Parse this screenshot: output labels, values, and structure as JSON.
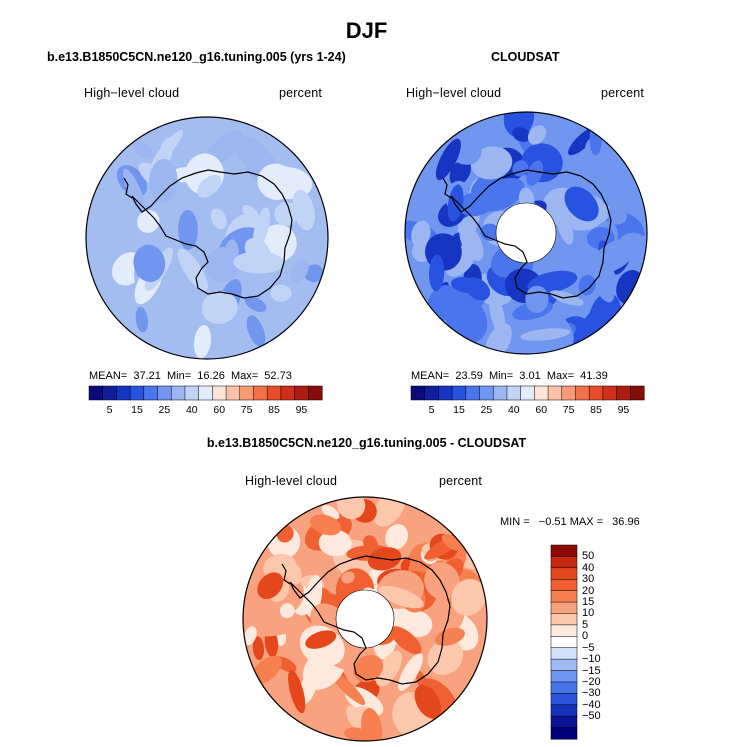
{
  "title": "DJF",
  "panels": [
    {
      "title": "b.e13.B1850C5CN.ne120_g16.tuning.005 (yrs 1-24)",
      "left_label": "High−level cloud",
      "right_label": "percent",
      "stats": {
        "mean_label": "MEAN=",
        "mean": "37.21",
        "min_label": "Min=",
        "min": "16.26",
        "max_label": "Max=",
        "max": "52.73"
      }
    },
    {
      "title": "CLOUDSAT",
      "left_label": "High−level cloud",
      "right_label": "percent",
      "stats": {
        "mean_label": "MEAN=",
        "mean": "23.59",
        "min_label": "Min=",
        "min": "3.01",
        "max_label": "Max=",
        "max": "41.39"
      }
    },
    {
      "title": "b.e13.B1850C5CN.ne120_g16.tuning.005 - CLOUDSAT",
      "left_label": "High-level cloud",
      "right_label": "percent",
      "minmax": "MIN =   −0.51 MAX =   36.96"
    }
  ],
  "colorbar_abs": {
    "colors": [
      "#0a0a7a",
      "#0f1f9c",
      "#1535c2",
      "#2852e0",
      "#4a75ec",
      "#7196f0",
      "#9cb6f2",
      "#c2d4f6",
      "#e3ecfb",
      "#fde3d8",
      "#fbc2a9",
      "#f99a76",
      "#f4704a",
      "#e84a2a",
      "#cf2f1b",
      "#ad1c10",
      "#870d09"
    ],
    "labels": [
      "5",
      "15",
      "25",
      "40",
      "60",
      "75",
      "85",
      "95"
    ]
  },
  "colorbar_diff": {
    "colors": [
      "#00007a",
      "#0a1494",
      "#1532b8",
      "#2a52dc",
      "#4672e8",
      "#6f96f0",
      "#9fbaf4",
      "#d2e2fa",
      "#ffffff",
      "#fde9dd",
      "#fbc8ad",
      "#f9a27f",
      "#f6804f",
      "#f06030",
      "#e4471c",
      "#c5280e",
      "#8c0a04"
    ],
    "labels": [
      "50",
      "40",
      "30",
      "20",
      "15",
      "10",
      "5",
      "0",
      "−5",
      "−10",
      "−15",
      "−20",
      "−30",
      "−40",
      "−50"
    ]
  },
  "chart_data": {
    "type": "heatmap",
    "title": "DJF",
    "maps": [
      {
        "name": "b.e13.B1850C5CN.ne120_g16.tuning.005 (yrs 1-24)",
        "variable": "High-level cloud",
        "units": "percent",
        "projection": "south polar stereographic",
        "mean": 37.21,
        "min": 16.26,
        "max": 52.73,
        "levels": [
          5,
          15,
          25,
          40,
          60,
          75,
          85,
          95
        ]
      },
      {
        "name": "CLOUDSAT",
        "variable": "High-level cloud",
        "units": "percent",
        "projection": "south polar stereographic",
        "mean": 23.59,
        "min": 3.01,
        "max": 41.39,
        "levels": [
          5,
          15,
          25,
          40,
          60,
          75,
          85,
          95
        ]
      },
      {
        "name": "b.e13.B1850C5CN.ne120_g16.tuning.005 - CLOUDSAT",
        "variable": "High-level cloud",
        "units": "percent",
        "projection": "south polar stereographic",
        "min": -0.51,
        "max": 36.96,
        "levels": [
          -50,
          -40,
          -30,
          -20,
          -15,
          -10,
          -5,
          0,
          5,
          10,
          15,
          20,
          30,
          40,
          50
        ]
      }
    ]
  }
}
